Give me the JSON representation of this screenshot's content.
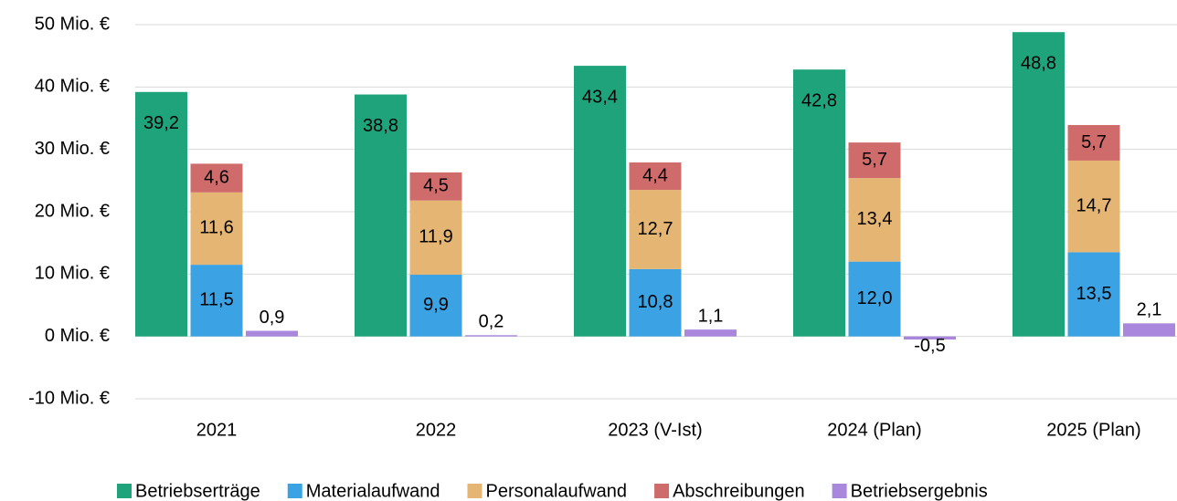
{
  "chart_data": {
    "type": "bar",
    "categories": [
      "2021",
      "2022",
      "2023 (V-Ist)",
      "2024 (Plan)",
      "2025 (Plan)"
    ],
    "series": [
      {
        "name": "Betriebserträge",
        "color": "#1fa37a",
        "stacked": false,
        "values": [
          39.2,
          38.8,
          43.4,
          42.8,
          48.8
        ],
        "value_labels": [
          "39,2",
          "38,8",
          "43,4",
          "42,8",
          "48,8"
        ]
      },
      {
        "name": "Materialaufwand",
        "color": "#3ba3e4",
        "stacked": true,
        "values": [
          11.5,
          9.9,
          10.8,
          12.0,
          13.5
        ],
        "value_labels": [
          "11,5",
          "9,9",
          "10,8",
          "12,0",
          "13,5"
        ]
      },
      {
        "name": "Personalaufwand",
        "color": "#e5b574",
        "stacked": true,
        "values": [
          11.6,
          11.9,
          12.7,
          13.4,
          14.7
        ],
        "value_labels": [
          "11,6",
          "11,9",
          "12,7",
          "13,4",
          "14,7"
        ]
      },
      {
        "name": "Abschreibungen",
        "color": "#d06b6b",
        "stacked": true,
        "values": [
          4.6,
          4.5,
          4.4,
          5.7,
          5.7
        ],
        "value_labels": [
          "4,6",
          "4,5",
          "4,4",
          "5,7",
          "5,7"
        ]
      },
      {
        "name": "Betriebsergebnis",
        "color": "#a887dd",
        "stacked": false,
        "values": [
          0.9,
          0.2,
          1.1,
          -0.5,
          2.1
        ],
        "value_labels": [
          "0,9",
          "0,2",
          "1,1",
          "-0,5",
          "2,1"
        ]
      }
    ],
    "ylim": [
      -10,
      50
    ],
    "yticks": [
      {
        "value": -10,
        "label": "-10 Mio. €"
      },
      {
        "value": 0,
        "label": "0 Mio. €"
      },
      {
        "value": 10,
        "label": "10 Mio. €"
      },
      {
        "value": 20,
        "label": "20 Mio. €"
      },
      {
        "value": 30,
        "label": "30 Mio. €"
      },
      {
        "value": 40,
        "label": "40 Mio. €"
      },
      {
        "value": 50,
        "label": "50 Mio. €"
      }
    ],
    "grid": true,
    "legend": "bottom"
  }
}
